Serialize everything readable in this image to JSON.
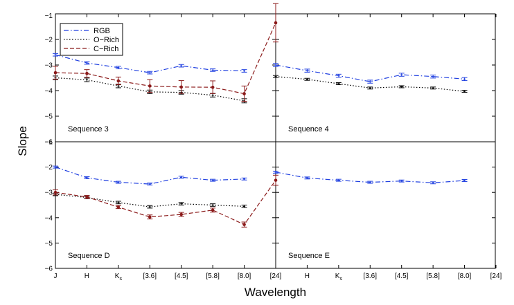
{
  "chart_data": {
    "type": "line",
    "title": "",
    "xlabel": "Wavelength",
    "ylabel": "Slope",
    "ylim": [
      -6,
      -1
    ],
    "yticks": [
      -6,
      -5,
      -4,
      -3,
      -2,
      -1
    ],
    "bands_left": [
      "J",
      "H",
      "K_s",
      "[3.6]",
      "[4.5]",
      "[5.8]",
      "[8.0]",
      "[24]"
    ],
    "bands_right": [
      "H",
      "K_s",
      "[3.6]",
      "[4.5]",
      "[5.8]",
      "[8.0]",
      "[24]"
    ],
    "legend": {
      "position": "top-left",
      "entries": [
        {
          "key": "rgb",
          "label": "RGB",
          "color": "#1f3fe0",
          "style": "dash-dot"
        },
        {
          "key": "orich",
          "label": "O−Rich",
          "color": "#000000",
          "style": "dotted"
        },
        {
          "key": "crich",
          "label": "C−Rich",
          "color": "#8b1a1a",
          "style": "dashed"
        }
      ]
    },
    "panels": [
      {
        "label": "Sequence 3",
        "row": 0,
        "col": 0,
        "series": [
          {
            "key": "rgb",
            "x": [
              0,
              1,
              2,
              3,
              4,
              5,
              6
            ],
            "y": [
              -2.6,
              -2.92,
              -3.1,
              -3.3,
              -3.03,
              -3.2,
              -3.23
            ],
            "err": [
              0.05,
              0.05,
              0.05,
              0.05,
              0.05,
              0.05,
              0.05
            ]
          },
          {
            "key": "orich",
            "x": [
              0,
              1,
              2,
              3,
              4,
              5,
              6
            ],
            "y": [
              -3.5,
              -3.58,
              -3.82,
              -4.05,
              -4.07,
              -4.18,
              -4.4
            ],
            "err": [
              0.07,
              0.07,
              0.07,
              0.07,
              0.07,
              0.07,
              0.08
            ]
          },
          {
            "key": "crich",
            "x": [
              0,
              1,
              2,
              3,
              4,
              5,
              6,
              7
            ],
            "y": [
              -3.3,
              -3.33,
              -3.62,
              -3.82,
              -3.86,
              -3.87,
              -4.12,
              -1.35
            ],
            "err": [
              0.25,
              0.15,
              0.15,
              0.25,
              0.25,
              0.25,
              0.3,
              0.75
            ]
          }
        ]
      },
      {
        "label": "Sequence 4",
        "row": 0,
        "col": 1,
        "series": [
          {
            "key": "rgb",
            "x": [
              0,
              1,
              2,
              3,
              4,
              5,
              6
            ],
            "y": [
              -3.0,
              -3.22,
              -3.42,
              -3.65,
              -3.38,
              -3.45,
              -3.55
            ],
            "err": [
              0.06,
              0.06,
              0.06,
              0.06,
              0.06,
              0.06,
              0.06
            ]
          },
          {
            "key": "orich",
            "x": [
              0,
              1,
              2,
              3,
              4,
              5,
              6
            ],
            "y": [
              -3.45,
              -3.56,
              -3.73,
              -3.9,
              -3.85,
              -3.9,
              -4.03
            ],
            "err": [
              0.04,
              0.04,
              0.04,
              0.04,
              0.04,
              0.04,
              0.04
            ]
          }
        ]
      },
      {
        "label": "Sequence D",
        "row": 1,
        "col": 0,
        "series": [
          {
            "key": "rgb",
            "x": [
              0,
              1,
              2,
              3,
              4,
              5,
              6
            ],
            "y": [
              -2.0,
              -2.42,
              -2.6,
              -2.67,
              -2.4,
              -2.52,
              -2.47
            ],
            "err": [
              0.04,
              0.04,
              0.04,
              0.04,
              0.04,
              0.04,
              0.04
            ]
          },
          {
            "key": "orich",
            "x": [
              0,
              1,
              2,
              3,
              4,
              5,
              6
            ],
            "y": [
              -3.08,
              -3.2,
              -3.4,
              -3.57,
              -3.45,
              -3.5,
              -3.55
            ],
            "err": [
              0.05,
              0.05,
              0.05,
              0.05,
              0.05,
              0.05,
              0.05
            ]
          },
          {
            "key": "crich",
            "x": [
              0,
              1,
              2,
              3,
              4,
              5,
              6,
              7
            ],
            "y": [
              -3.0,
              -3.18,
              -3.58,
              -3.97,
              -3.87,
              -3.7,
              -4.27,
              -2.52
            ],
            "err": [
              0.1,
              0.06,
              0.06,
              0.08,
              0.08,
              0.08,
              0.1,
              0.2
            ]
          }
        ]
      },
      {
        "label": "Sequence E",
        "row": 1,
        "col": 1,
        "series": [
          {
            "key": "rgb",
            "x": [
              0,
              1,
              2,
              3,
              4,
              5,
              6
            ],
            "y": [
              -2.2,
              -2.43,
              -2.52,
              -2.6,
              -2.55,
              -2.62,
              -2.53
            ],
            "err": [
              0.04,
              0.04,
              0.04,
              0.04,
              0.04,
              0.04,
              0.04
            ]
          }
        ]
      }
    ]
  }
}
